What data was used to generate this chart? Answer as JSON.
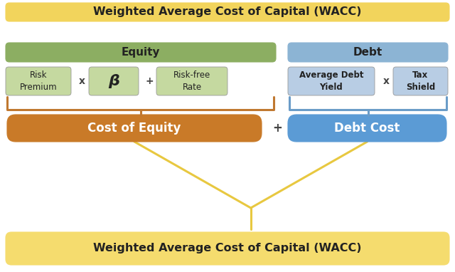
{
  "title_top": "Weighted Average Cost of Capital (WACC)",
  "title_bottom": "Weighted Average Cost of Capital (WACC)",
  "equity_label": "Equity",
  "debt_label": "Debt",
  "equity_components": [
    "Risk\nPremium",
    "β",
    "Risk-free\nRate"
  ],
  "equity_operators": [
    "x",
    "+"
  ],
  "debt_components": [
    "Average Debt\nYield",
    "Tax\nShield"
  ],
  "debt_operators": [
    "x"
  ],
  "cost_equity_label": "Cost of Equity",
  "debt_cost_label": "Debt Cost",
  "plus_operator": "+",
  "colors": {
    "title_top_bg": "#F2D45C",
    "title_bottom_bg": "#F5DC6E",
    "equity_header_bg": "#8CAE62",
    "debt_header_bg": "#8CB4D4",
    "equity_box_bg": "#C5D9A0",
    "debt_box_bg": "#B8CDE4",
    "cost_equity_bg": "#C97A28",
    "debt_cost_bg": "#5B9BD5",
    "operator_color": "#444444",
    "brace_equity_color": "#C07830",
    "brace_debt_color": "#6A9CC8",
    "connector_line_color": "#E8C840",
    "text_white": "#FFFFFF",
    "text_dark": "#222222",
    "background": "#FFFFFF"
  },
  "figsize": [
    6.4,
    3.82
  ],
  "dpi": 100
}
